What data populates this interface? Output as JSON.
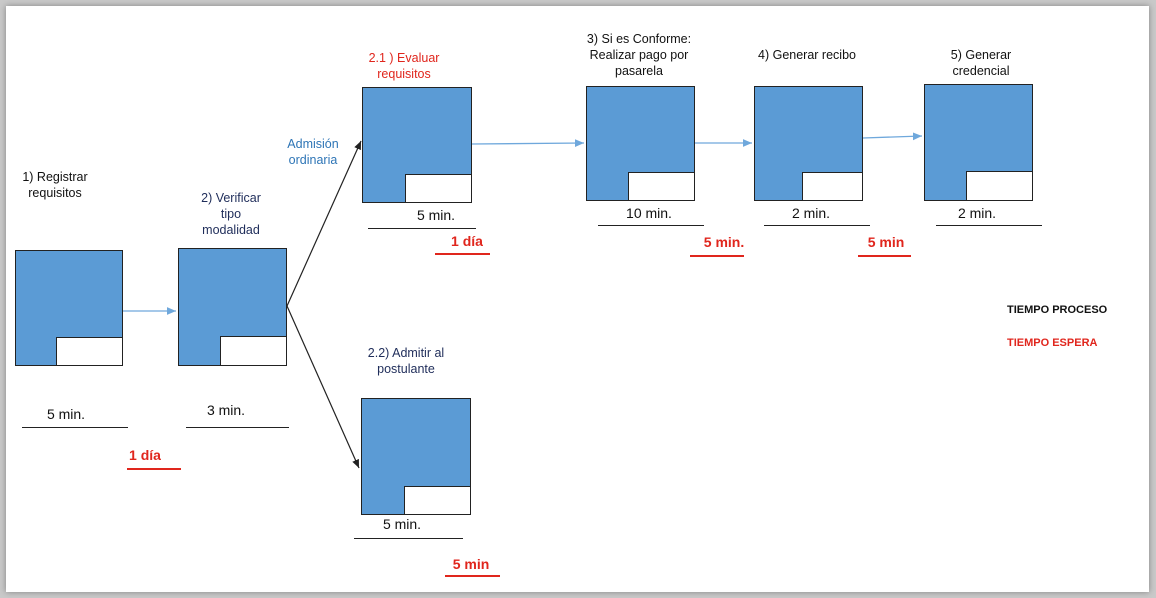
{
  "steps": [
    {
      "label_lines": [
        "1) Registrar",
        "requisitos"
      ],
      "time": "5 min."
    },
    {
      "label_lines": [
        "2) Verificar",
        "tipo",
        "modalidad"
      ],
      "time": "3 min."
    },
    {
      "label_lines": [
        "2.1 ) Evaluar",
        "requisitos"
      ],
      "time": "5 min."
    },
    {
      "label_lines": [
        "2.2) Admitir al",
        "postulante"
      ],
      "time": "5 min."
    },
    {
      "label_lines": [
        "3) Si es Conforme:",
        "Realizar pago por",
        "pasarela"
      ],
      "time": "10 min."
    },
    {
      "label_lines": [
        "4) Generar recibo"
      ],
      "time": "2 min."
    },
    {
      "label_lines": [
        "5) Generar",
        "credencial"
      ],
      "time": "2 min."
    }
  ],
  "waits": {
    "w1": "1 día",
    "w2": "1 día",
    "w3": "5 min.",
    "w4": "5 min",
    "w5": "5 min"
  },
  "edge_label": [
    "Admisión",
    "ordinaria"
  ],
  "legend": {
    "process": "TIEMPO PROCESO",
    "wait": "TIEMPO ESPERA"
  },
  "colors": {
    "box_fill": "#5b9bd5",
    "wait_text": "#e0261d",
    "flow_arrow": "#6fa8dc",
    "branch_arrow": "#222222",
    "edge_label": "#2e75b6",
    "label_dark": "#1f2d5a"
  }
}
